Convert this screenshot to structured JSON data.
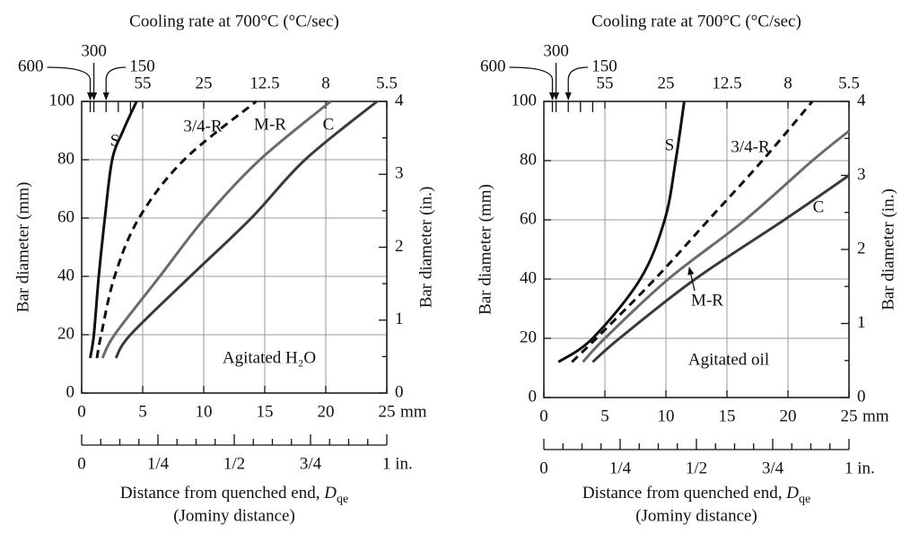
{
  "chart_data": [
    {
      "type": "line",
      "title": "Cooling rate at 700°C (°C/sec)",
      "annotation": "Agitated H₂O",
      "xlabel": [
        "Distance from quenched end, ",
        "D",
        "qe"
      ],
      "xlabel2": "(Jominy distance)",
      "ylabel": "Bar diameter (mm)",
      "y2label": "Bar diameter (in.)",
      "xlim": [
        0,
        25
      ],
      "xticks": [
        0,
        5,
        10,
        15,
        20,
        25
      ],
      "x_unit": "mm",
      "ylim": [
        0,
        100
      ],
      "yticks": [
        0,
        20,
        40,
        60,
        80,
        100
      ],
      "y2lim": [
        0,
        4
      ],
      "y2ticks": [
        0,
        1,
        2,
        3,
        4
      ],
      "y2minorticks": [
        0.5,
        1.5,
        2.5,
        3.5
      ],
      "x2lim": [
        0,
        1
      ],
      "x2ticks": [
        0,
        {
          "value": 0.25,
          "label": "1/4"
        },
        {
          "value": 0.5,
          "label": "1/2"
        },
        {
          "value": 0.75,
          "label": "3/4"
        },
        {
          "value": 1,
          "label": "1 in."
        }
      ],
      "x2minorticks": [
        0.0625,
        0.125,
        0.1875,
        0.3125,
        0.375,
        0.4375,
        0.5625,
        0.625,
        0.6875,
        0.8125,
        0.875,
        0.9375
      ],
      "x3ticks": [
        {
          "value": 0.7,
          "label": "600"
        },
        {
          "value": 1,
          "label": "300"
        },
        {
          "value": 2,
          "label": "150"
        },
        {
          "value": 5,
          "label": "55"
        },
        {
          "value": 10,
          "label": "25"
        },
        {
          "value": 15,
          "label": "12.5"
        },
        {
          "value": 20,
          "label": "8"
        },
        {
          "value": 25,
          "label": "5.5"
        }
      ],
      "x3minorticks": [
        3,
        4
      ],
      "grid": true,
      "series": [
        {
          "name": "S",
          "color": "#111111",
          "x": [
            0.7,
            1.0,
            1.4,
            1.9,
            2.5,
            3.4,
            4.5
          ],
          "values": [
            12,
            20,
            40,
            60,
            80,
            90,
            100
          ]
        },
        {
          "name": "3/4-R",
          "color": "#111111",
          "dash": true,
          "x": [
            1.25,
            1.6,
            2.7,
            4.7,
            8.4,
            14.3
          ],
          "values": [
            12,
            20,
            40,
            60,
            80,
            100
          ]
        },
        {
          "name": "M-R",
          "color": "#6b6b6b",
          "x": [
            1.7,
            2.7,
            6.4,
            10.1,
            14.6,
            20.4
          ],
          "values": [
            12,
            20,
            40,
            60,
            80,
            100
          ]
        },
        {
          "name": "C",
          "color": "#3a3a3a",
          "x": [
            2.8,
            4.0,
            8.9,
            13.9,
            18.3,
            24.2
          ],
          "values": [
            12,
            20,
            40,
            60,
            80,
            100
          ]
        }
      ]
    },
    {
      "type": "line",
      "title": "Cooling rate at 700°C (°C/sec)",
      "annotation": "Agitated oil",
      "xlabel": [
        "Distance from quenched end, ",
        "D",
        "qe"
      ],
      "xlabel2": "(Jominy distance)",
      "ylabel": "Bar diameter (mm)",
      "y2label": "Bar diameter (in.)",
      "xlim": [
        0,
        25
      ],
      "xticks": [
        0,
        5,
        10,
        15,
        20,
        25
      ],
      "x_unit": "mm",
      "ylim": [
        0,
        100
      ],
      "yticks": [
        0,
        20,
        40,
        60,
        80,
        100
      ],
      "y2lim": [
        0,
        4
      ],
      "y2ticks": [
        0,
        1,
        2,
        3,
        4
      ],
      "y2minorticks": [
        0.5,
        1.5,
        2.5,
        3.5
      ],
      "x2lim": [
        0,
        1
      ],
      "x2ticks": [
        0,
        {
          "value": 0.25,
          "label": "1/4"
        },
        {
          "value": 0.5,
          "label": "1/2"
        },
        {
          "value": 0.75,
          "label": "3/4"
        },
        {
          "value": 1,
          "label": "1 in."
        }
      ],
      "x2minorticks": [
        0.0625,
        0.125,
        0.1875,
        0.3125,
        0.375,
        0.4375,
        0.5625,
        0.625,
        0.6875,
        0.8125,
        0.875,
        0.9375
      ],
      "x3ticks": [
        {
          "value": 0.7,
          "label": "600"
        },
        {
          "value": 1,
          "label": "300"
        },
        {
          "value": 2,
          "label": "150"
        },
        {
          "value": 5,
          "label": "55"
        },
        {
          "value": 10,
          "label": "25"
        },
        {
          "value": 15,
          "label": "12.5"
        },
        {
          "value": 20,
          "label": "8"
        },
        {
          "value": 25,
          "label": "5.5"
        }
      ],
      "x3minorticks": [
        3,
        4
      ],
      "grid": true,
      "series": [
        {
          "name": "S",
          "color": "#111111",
          "x": [
            1.2,
            4.0,
            7.9,
            9.9,
            10.8,
            11.5
          ],
          "values": [
            12,
            20,
            40,
            60,
            80,
            100
          ]
        },
        {
          "name": "3/4-R",
          "color": "#111111",
          "dash": true,
          "x": [
            2.3,
            4.3,
            9.1,
            13.5,
            17.9,
            22
          ],
          "values": [
            12,
            20,
            40,
            60,
            80,
            100
          ]
        },
        {
          "name": "M-R",
          "color": "#6b6b6b",
          "x": [
            3.2,
            5.0,
            10.2,
            16.5,
            22,
            25
          ],
          "values": [
            12,
            20,
            40,
            60,
            80,
            90
          ]
        },
        {
          "name": "C",
          "color": "#3a3a3a",
          "x": [
            4,
            6.2,
            12.4,
            19.7,
            25
          ],
          "values": [
            12,
            20,
            40,
            60,
            75
          ]
        }
      ]
    }
  ]
}
